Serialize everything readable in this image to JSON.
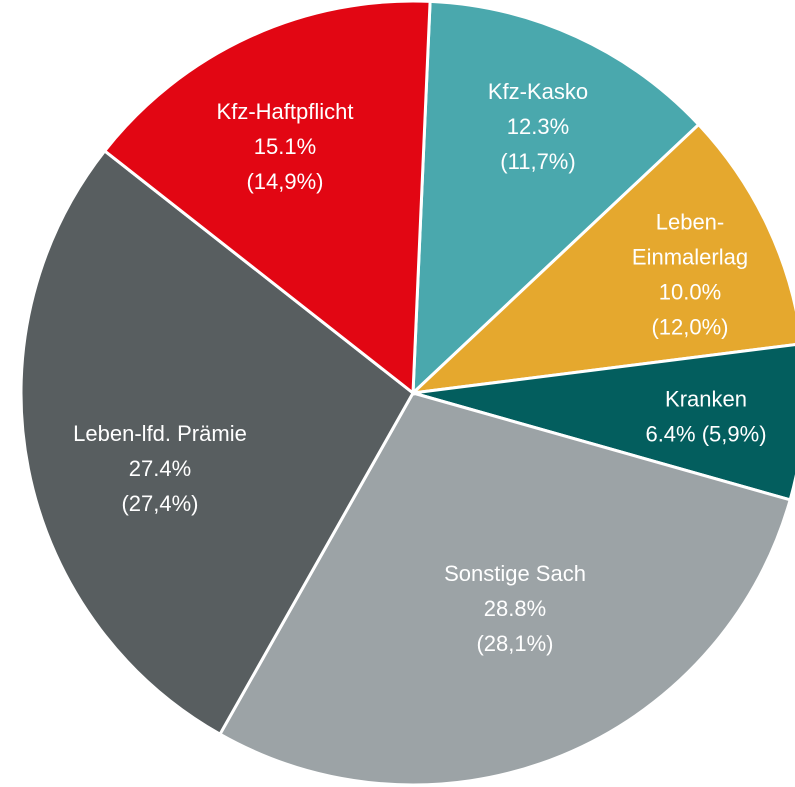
{
  "chart_data": {
    "type": "pie",
    "categories": [
      "Kfz-Kasko",
      [
        "Leben-",
        "Einmalerlag"
      ],
      "Kranken",
      "Sonstige Sach",
      "Leben-lfd. Prämie",
      "Kfz-Haftpflicht"
    ],
    "values": [
      12.3,
      10.0,
      6.4,
      28.8,
      27.4,
      15.1
    ],
    "value_labels": [
      "12.3%",
      "10.0%",
      "6.4%",
      "28.8%",
      "27.4%",
      "15.1%"
    ],
    "prior_labels": [
      "(11,7%)",
      "(12,0%)",
      "(5,9%)",
      "(28,1%)",
      "(27,4%)",
      "(14,9%)"
    ],
    "colors": [
      "#4aa8ad",
      "#e5a82e",
      "#035e5e",
      "#9ca3a6",
      "#585e60",
      "#e20613"
    ]
  }
}
